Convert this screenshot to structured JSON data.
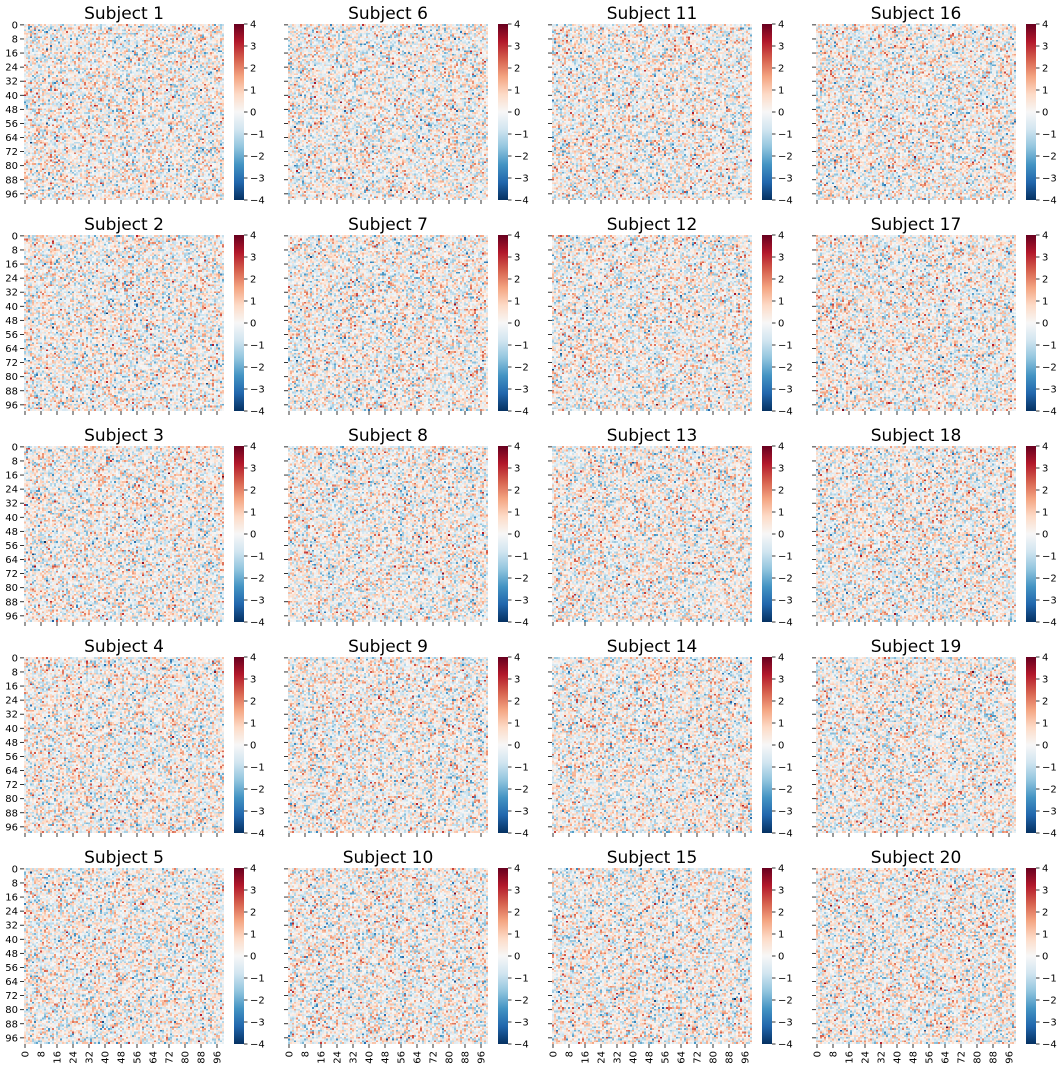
{
  "chart_data": {
    "type": "heatmap",
    "layout": {
      "rows": 5,
      "cols": 4,
      "order": "column-major"
    },
    "panels": [
      {
        "title": "Subject 1"
      },
      {
        "title": "Subject 2"
      },
      {
        "title": "Subject 3"
      },
      {
        "title": "Subject 4"
      },
      {
        "title": "Subject 5"
      },
      {
        "title": "Subject 6"
      },
      {
        "title": "Subject 7"
      },
      {
        "title": "Subject 8"
      },
      {
        "title": "Subject 9"
      },
      {
        "title": "Subject 10"
      },
      {
        "title": "Subject 11"
      },
      {
        "title": "Subject 12"
      },
      {
        "title": "Subject 13"
      },
      {
        "title": "Subject 14"
      },
      {
        "title": "Subject 15"
      },
      {
        "title": "Subject 16"
      },
      {
        "title": "Subject 17"
      },
      {
        "title": "Subject 18"
      },
      {
        "title": "Subject 19"
      },
      {
        "title": "Subject 20"
      }
    ],
    "matrix_size": [
      100,
      100
    ],
    "value_distribution": "random noise, approximately standard normal (mean 0, sd 1)",
    "x_tick_labels": [
      "0",
      "8",
      "16",
      "24",
      "32",
      "40",
      "48",
      "56",
      "64",
      "72",
      "80",
      "88",
      "96"
    ],
    "y_tick_labels": [
      "0",
      "8",
      "16",
      "24",
      "32",
      "40",
      "48",
      "56",
      "64",
      "72",
      "80",
      "88",
      "96"
    ],
    "x_ticks_labeled_on": "bottom row only",
    "y_ticks_labeled_on": "left column only",
    "colorbar": {
      "range": [
        -4,
        4
      ],
      "tick_labels": [
        "4",
        "3",
        "2",
        "1",
        "0",
        "−1",
        "−2",
        "−3",
        "−4"
      ],
      "colormap": "RdBu_r",
      "colors": [
        "#053061",
        "#2166ac",
        "#4393c3",
        "#92c5de",
        "#d1e5f0",
        "#f7f7f7",
        "#fddbc7",
        "#f4a582",
        "#d6604d",
        "#b2182b",
        "#67001f"
      ]
    }
  }
}
